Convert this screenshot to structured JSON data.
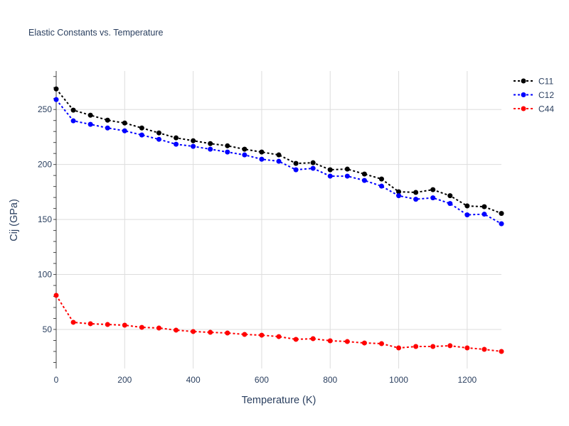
{
  "chart_data": {
    "type": "line",
    "title": "Elastic Constants vs. Temperature",
    "xlabel": "Temperature (K)",
    "ylabel": "Cij (GPa)",
    "xlim": [
      0,
      1300
    ],
    "ylim": [
      14.5,
      285
    ],
    "xticks": [
      0,
      200,
      400,
      600,
      800,
      1000,
      1200
    ],
    "yticks": [
      50,
      100,
      150,
      200,
      250
    ],
    "grid": true,
    "legend_position": "top-right",
    "x": [
      0,
      50,
      100,
      150,
      200,
      250,
      300,
      350,
      400,
      450,
      500,
      550,
      600,
      650,
      700,
      750,
      800,
      850,
      900,
      950,
      1000,
      1050,
      1100,
      1150,
      1200,
      1250,
      1300
    ],
    "series": [
      {
        "name": "C11",
        "color": "#000000",
        "values": [
          268.7,
          249.4,
          244.8,
          240.3,
          237.7,
          233.2,
          228.7,
          224.2,
          221.6,
          219,
          217,
          213.9,
          211.3,
          208.7,
          201,
          201.6,
          195.2,
          195.8,
          191.3,
          186.8,
          175.2,
          174.6,
          177.1,
          171.6,
          162.3,
          161.6,
          155.5
        ]
      },
      {
        "name": "C12",
        "color": "#0000ff",
        "values": [
          259,
          239.7,
          236.5,
          233.2,
          230.6,
          226.8,
          222.9,
          218.4,
          216.5,
          213.9,
          211.3,
          208.7,
          204.8,
          202.9,
          195.2,
          196.5,
          189.4,
          189.4,
          185.5,
          180.3,
          171.6,
          168.4,
          169.7,
          164.5,
          154.2,
          154.8,
          146.1
        ]
      },
      {
        "name": "C44",
        "color": "#ff0000",
        "values": [
          81,
          56.5,
          55.2,
          54.5,
          53.9,
          51.9,
          51.3,
          49.4,
          48.1,
          47.4,
          46.8,
          45.5,
          44.8,
          43.5,
          41,
          41.6,
          39.7,
          39,
          37.7,
          37.1,
          33.2,
          34.5,
          34.5,
          35.2,
          33.2,
          31.9,
          30
        ]
      }
    ]
  }
}
